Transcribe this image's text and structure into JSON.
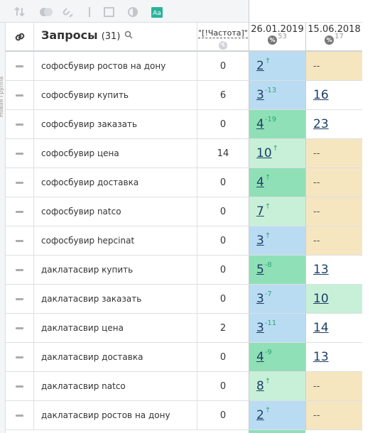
{
  "toolbar": {
    "badge": "Aa"
  },
  "side_label": "Новая группа",
  "header": {
    "query_title": "Запросы",
    "query_count": "(31)",
    "frequency": "\"[!Частота]\"",
    "dates": [
      {
        "date": "26.01.2019",
        "icon": "%",
        "count": "53"
      },
      {
        "date": "15.06.2018",
        "icon": "%",
        "count": "17"
      }
    ]
  },
  "rows": [
    {
      "query": "софосбувир ростов на дону",
      "frequency": 0,
      "positions": [
        {
          "value": 2,
          "change": "↑",
          "color": "#b9dcf2"
        },
        {
          "value": "--",
          "color": "#f6e6c0"
        }
      ]
    },
    {
      "query": "софосбувир купить",
      "frequency": 6,
      "positions": [
        {
          "value": 3,
          "change": "-13",
          "color": "#b9dcf2"
        },
        {
          "value": 16,
          "color": "#ffffff"
        }
      ]
    },
    {
      "query": "софосбувир заказать",
      "frequency": 0,
      "positions": [
        {
          "value": 4,
          "change": "-19",
          "color": "#8fe0b6"
        },
        {
          "value": 23,
          "color": "#ffffff"
        }
      ]
    },
    {
      "query": "софосбувир цена",
      "frequency": 14,
      "positions": [
        {
          "value": 10,
          "change": "↑",
          "color": "#c8f0d8"
        },
        {
          "value": "--",
          "color": "#f6e6c0"
        }
      ]
    },
    {
      "query": "софосбувир доставка",
      "frequency": 0,
      "positions": [
        {
          "value": 4,
          "change": "↑",
          "color": "#8fe0b6"
        },
        {
          "value": "--",
          "color": "#f6e6c0"
        }
      ]
    },
    {
      "query": "софосбувир natco",
      "frequency": 0,
      "positions": [
        {
          "value": 7,
          "change": "↑",
          "color": "#c8f0d8"
        },
        {
          "value": "--",
          "color": "#f6e6c0"
        }
      ]
    },
    {
      "query": "софосбувир hepcinat",
      "frequency": 0,
      "positions": [
        {
          "value": 3,
          "change": "↑",
          "color": "#b9dcf2"
        },
        {
          "value": "--",
          "color": "#f6e6c0"
        }
      ]
    },
    {
      "query": "даклатасвир купить",
      "frequency": 0,
      "positions": [
        {
          "value": 5,
          "change": "-8",
          "color": "#8fe0b6"
        },
        {
          "value": 13,
          "color": "#ffffff"
        }
      ]
    },
    {
      "query": "даклатасвир заказать",
      "frequency": 0,
      "positions": [
        {
          "value": 3,
          "change": "-7",
          "color": "#b9dcf2"
        },
        {
          "value": 10,
          "color": "#c8f0d8"
        }
      ]
    },
    {
      "query": "даклатасвир цена",
      "frequency": 2,
      "positions": [
        {
          "value": 3,
          "change": "-11",
          "color": "#b9dcf2"
        },
        {
          "value": 14,
          "color": "#ffffff"
        }
      ]
    },
    {
      "query": "даклатасвир доставка",
      "frequency": 0,
      "positions": [
        {
          "value": 4,
          "change": "-9",
          "color": "#8fe0b6"
        },
        {
          "value": 13,
          "color": "#ffffff"
        }
      ]
    },
    {
      "query": "даклатасвир natco",
      "frequency": 0,
      "positions": [
        {
          "value": 8,
          "change": "↑",
          "color": "#c8f0d8"
        },
        {
          "value": "--",
          "color": "#f6e6c0"
        }
      ]
    },
    {
      "query": "даклатасвир ростов на дону",
      "frequency": 0,
      "positions": [
        {
          "value": 2,
          "change": "↑",
          "color": "#b9dcf2"
        },
        {
          "value": "--",
          "color": "#f6e6c0"
        }
      ]
    }
  ]
}
